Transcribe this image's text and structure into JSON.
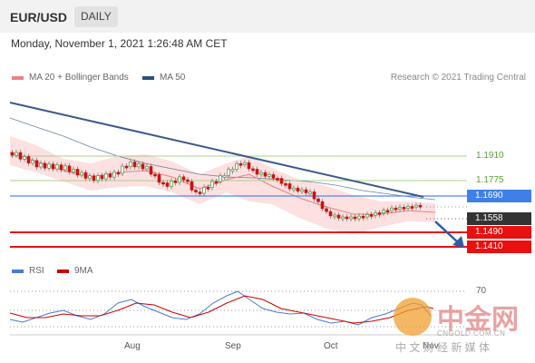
{
  "header": {
    "pair": "EUR/USD",
    "timeframe": "DAILY",
    "datetime": "Monday, November 1, 2021 1:26:48 AM CET"
  },
  "legend": {
    "ma20_label": "MA 20 + Bollinger Bands",
    "ma50_label": "MA 50",
    "credit": "Research © 2021 Trading Central",
    "colors": {
      "ma20": "#f08080",
      "ma50": "#2c4f7c"
    }
  },
  "levels": {
    "r2": "1.1910",
    "r1": "1.1775",
    "pivot": "1.1690",
    "current": "1.1558",
    "s1": "1.1490",
    "s2": "1.1410"
  },
  "rsi": {
    "rsi_label": "RSI",
    "ma9_label": "9MA",
    "level70": "70",
    "colors": {
      "rsi": "#4a7bd0",
      "ma9": "#cc0000"
    }
  },
  "xaxis": {
    "aug": "Aug",
    "sep": "Sep",
    "oct": "Oct",
    "nov": "Nov"
  },
  "watermark": {
    "main": "中金网",
    "sub": "中 文 财 经 新 媒 体",
    "domain": "CNGOLD.COM.CN"
  },
  "chart_data": {
    "type": "line",
    "title": "",
    "horizontal_levels": [
      1.191,
      1.1775,
      1.169,
      1.1558,
      1.149,
      1.141
    ],
    "series": [
      {
        "name": "MA 20 + Bollinger Bands"
      },
      {
        "name": "MA 50"
      },
      {
        "name": "RSI"
      },
      {
        "name": "9MA"
      }
    ]
  }
}
